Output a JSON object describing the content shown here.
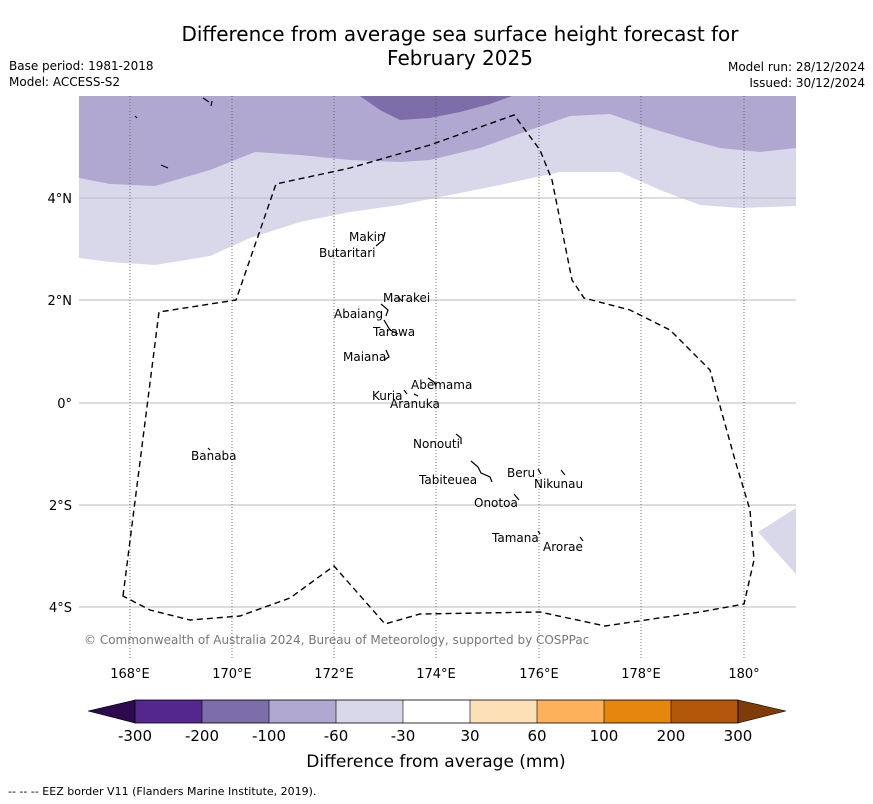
{
  "title": "Difference from average sea surface height forecast for",
  "title_line2": "February 2025",
  "meta_left": [
    "Base period: 1981-2018",
    "Model: ACCESS-S2"
  ],
  "meta_right": [
    "Model run: 28/12/2024",
    "Issued: 30/12/2024"
  ],
  "lon_labels": [
    "168°E",
    "170°E",
    "172°E",
    "174°E",
    "176°E",
    "178°E",
    "180°"
  ],
  "lat_labels": [
    "4°N",
    "2°N",
    "0°",
    "2°S",
    "4°S"
  ],
  "copyright": "© Commonwealth of Australia 2024, Bureau of Meteorology, supported by COSPPac",
  "places": [
    {
      "name": "Makin",
      "lon": 172.85,
      "lat": 3.17
    },
    {
      "name": "Butaritari",
      "lon": 172.8,
      "lat": 3.03
    },
    {
      "name": "Marakei",
      "lon": 173.3,
      "lat": 2.0
    },
    {
      "name": "Abaiang",
      "lon": 172.95,
      "lat": 1.85
    },
    {
      "name": "Tarawa",
      "lon": 173.0,
      "lat": 1.4
    },
    {
      "name": "Maiana",
      "lon": 173.0,
      "lat": 0.95
    },
    {
      "name": "Abemama",
      "lon": 173.85,
      "lat": 0.4
    },
    {
      "name": "Kuria",
      "lon": 173.4,
      "lat": 0.22
    },
    {
      "name": "Aranuka",
      "lon": 173.6,
      "lat": 0.17
    },
    {
      "name": "Nonouti",
      "lon": 174.45,
      "lat": -0.65
    },
    {
      "name": "Beru",
      "lon": 176.0,
      "lat": -1.33
    },
    {
      "name": "Nikunau",
      "lon": 176.45,
      "lat": -1.35
    },
    {
      "name": "Tabiteuea",
      "lon": 174.85,
      "lat": -1.35
    },
    {
      "name": "Onotoa",
      "lon": 175.55,
      "lat": -1.8
    },
    {
      "name": "Tamana",
      "lon": 175.98,
      "lat": -2.5
    },
    {
      "name": "Arorae",
      "lon": 176.82,
      "lat": -2.65
    },
    {
      "name": "Banaba",
      "lon": 169.55,
      "lat": -0.85
    }
  ],
  "colorbar": {
    "label": "Difference from average (mm)",
    "ticks": [
      "-300",
      "-200",
      "-100",
      "-60",
      "-30",
      "30",
      "60",
      "100",
      "200",
      "300"
    ],
    "colors": [
      "#2d0a4e",
      "#54278f",
      "#7d6ea9",
      "#b0a8d0",
      "#d8d8ea",
      "#ffffff",
      "#fde0b6",
      "#fdb15b",
      "#e5860f",
      "#b3570a",
      "#7f3b08"
    ]
  },
  "footer": "--  --  -- EEZ border V11 (Flanders Marine Institute, 2019).",
  "map": {
    "lon_range": [
      167,
      181
    ],
    "lat_range": [
      -5,
      6
    ],
    "colors": {
      "purple_dark": "#7d6ea9",
      "purple_mid": "#b0a8d0",
      "lavender": "#d8d8ea",
      "gridline": "#bbbbbb"
    }
  }
}
